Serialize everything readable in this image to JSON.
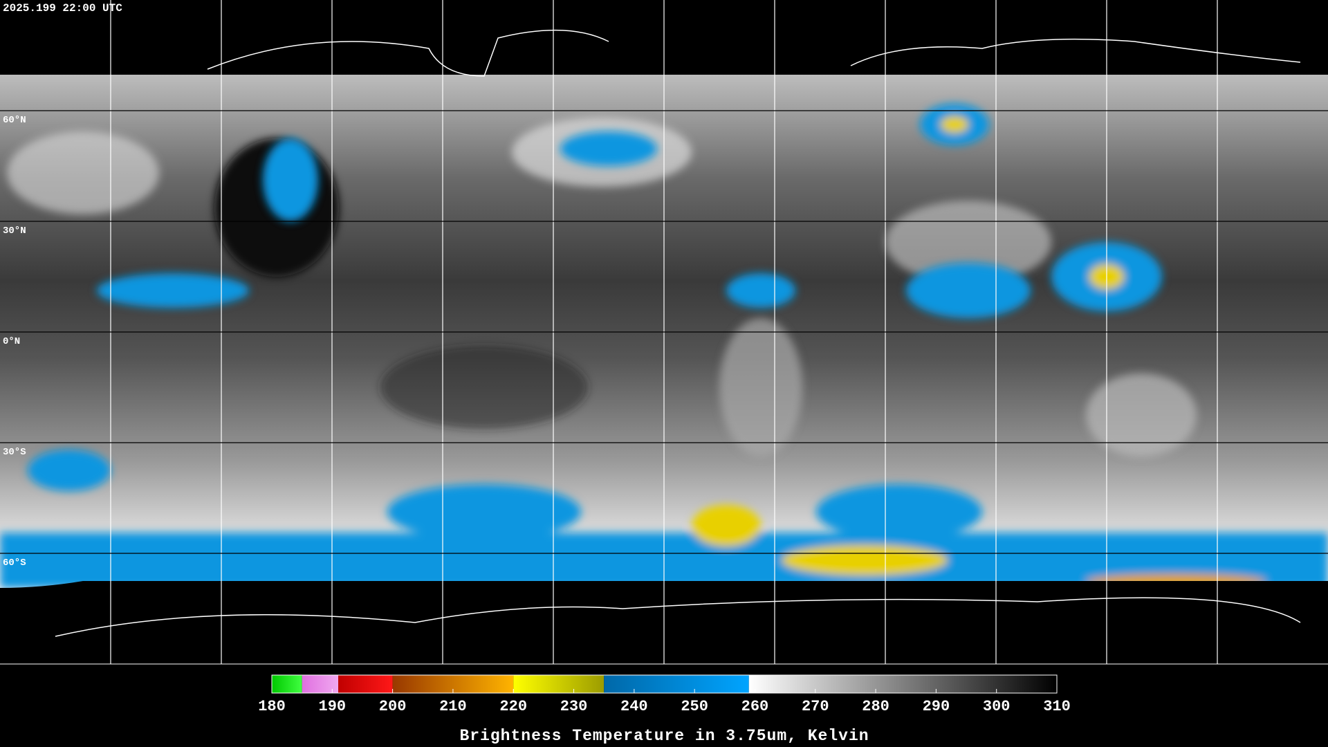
{
  "header": {
    "timestamp": "2025.199 22:00 UTC"
  },
  "map": {
    "lat_lines": [
      {
        "value": 60,
        "label": "60°N"
      },
      {
        "value": 30,
        "label": "30°N"
      },
      {
        "value": 0,
        "label": "0°N"
      },
      {
        "value": -30,
        "label": "30°S"
      },
      {
        "value": -60,
        "label": "60°S"
      }
    ]
  },
  "colorbar": {
    "title": "Brightness Temperature in 3.75um, Kelvin",
    "range": [
      180,
      310
    ],
    "ticks": [
      180,
      190,
      200,
      210,
      220,
      230,
      240,
      250,
      260,
      270,
      280,
      290,
      300,
      310
    ],
    "segments": [
      {
        "from": 180,
        "to": 185,
        "colors": [
          "#00c800",
          "#40ff40"
        ]
      },
      {
        "from": 185,
        "to": 191,
        "colors": [
          "#e070e0",
          "#f0a8f0"
        ]
      },
      {
        "from": 191,
        "to": 200,
        "colors": [
          "#c00000",
          "#ff1818"
        ]
      },
      {
        "from": 200,
        "to": 220,
        "colors": [
          "#983800",
          "#ffb400"
        ]
      },
      {
        "from": 220,
        "to": 235,
        "colors": [
          "#ffff00",
          "#9c9c00"
        ]
      },
      {
        "from": 235,
        "to": 259,
        "colors": [
          "#0068a8",
          "#00a4ff"
        ]
      },
      {
        "from": 259,
        "to": 310,
        "colors": [
          "#ffffff",
          "#000000"
        ]
      }
    ]
  }
}
